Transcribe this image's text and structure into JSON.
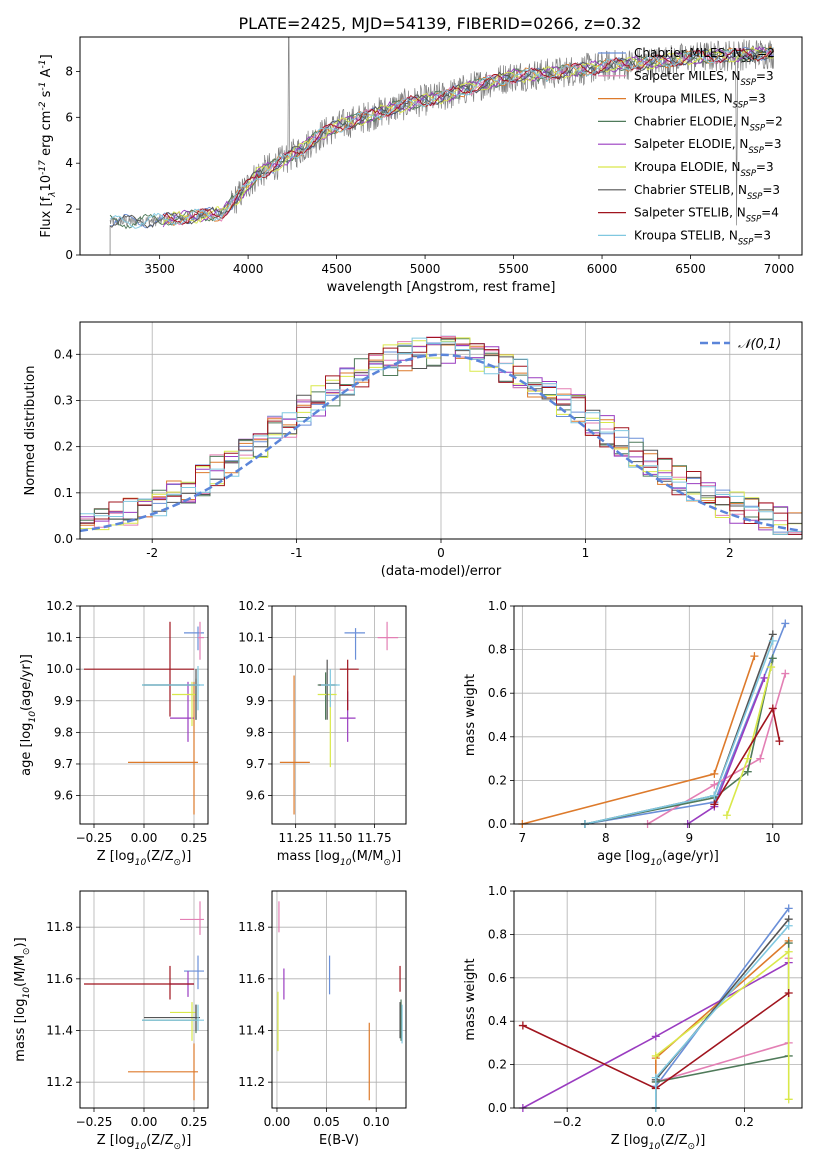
{
  "figure": {
    "title": "PLATE=2425, MJD=54139, FIBERID=0266, z=0.32"
  },
  "models": [
    {
      "name": "Chabrier MILES",
      "nssp": "2",
      "color": "#6a8fd8"
    },
    {
      "name": "Salpeter MILES",
      "nssp": "3",
      "color": "#e37fb4"
    },
    {
      "name": "Kroupa MILES",
      "nssp": "3",
      "color": "#dd7a2b"
    },
    {
      "name": "Chabrier ELODIE",
      "nssp": "2",
      "color": "#4f7a5a"
    },
    {
      "name": "Salpeter ELODIE",
      "nssp": "3",
      "color": "#9a3cc0"
    },
    {
      "name": "Kroupa ELODIE",
      "nssp": "3",
      "color": "#d9e84a"
    },
    {
      "name": "Chabrier STELIB",
      "nssp": "3",
      "color": "#555555"
    },
    {
      "name": "Salpeter STELIB",
      "nssp": "4",
      "color": "#a0141e"
    },
    {
      "name": "Kroupa STELIB",
      "nssp": "3",
      "color": "#80c8e0"
    }
  ],
  "chart_data": [
    {
      "type": "line",
      "id": "spectrum",
      "xlabel": "wavelength [Angstrom, rest frame]",
      "ylabel": "Flux [f$_\\lambda$10$^{-17}$ erg cm$^{-2}$ s$^{-1}$ A$^{-1}$]",
      "xlim": [
        3050,
        7130
      ],
      "ylim": [
        0,
        9.5
      ],
      "xticks": [
        3500,
        4000,
        4500,
        5000,
        5500,
        6000,
        6500,
        7000
      ],
      "yticks": [
        0,
        2,
        4,
        6,
        8
      ],
      "legend": "right",
      "data_series": {
        "name": "",
        "color": "#808080",
        "x_range": [
          3220,
          6970
        ]
      },
      "continuum": [
        [
          3220,
          1.45
        ],
        [
          3500,
          1.5
        ],
        [
          3700,
          1.7
        ],
        [
          3850,
          1.8
        ],
        [
          3950,
          2.6
        ],
        [
          4050,
          3.5
        ],
        [
          4150,
          3.9
        ],
        [
          4300,
          4.6
        ],
        [
          4400,
          5.2
        ],
        [
          4500,
          5.6
        ],
        [
          4700,
          6.1
        ],
        [
          4900,
          6.6
        ],
        [
          5100,
          6.9
        ],
        [
          5300,
          7.4
        ],
        [
          5500,
          7.8
        ],
        [
          5700,
          7.9
        ],
        [
          5900,
          8.1
        ],
        [
          6100,
          8.3
        ],
        [
          6300,
          8.4
        ],
        [
          6500,
          8.6
        ],
        [
          6700,
          8.7
        ],
        [
          6970,
          8.8
        ]
      ]
    },
    {
      "type": "bar",
      "id": "residuals",
      "xlabel": "(data-model)/error",
      "ylabel": "Normed distribution",
      "xlim": [
        -2.5,
        2.5
      ],
      "ylim": [
        0,
        0.47
      ],
      "xticks": [
        -2,
        -1,
        0,
        1,
        2
      ],
      "yticks": [
        0.0,
        0.1,
        0.2,
        0.3,
        0.4
      ],
      "legend": "top-right",
      "reference": {
        "name": "$\\mathcal{N}(0,1)$",
        "color": "#5b85d9"
      },
      "bin_width": 0.1
    },
    {
      "type": "scatter",
      "id": "age_vs_Z",
      "xlabel": "Z [log$_{10}$(Z/Z$_\\odot$)]",
      "ylabel": "age  [log$_{10}$(age/yr)]",
      "xlim": [
        -0.32,
        0.32
      ],
      "ylim": [
        9.51,
        10.2
      ],
      "xticks": [
        -0.25,
        0.0,
        0.25
      ],
      "xticklabels": [
        "−0.25",
        "0.00",
        "0.25"
      ],
      "yticks": [
        9.6,
        9.7,
        9.8,
        9.9,
        10.0,
        10.1,
        10.2
      ],
      "points": [
        {
          "model": 0,
          "x": 0.27,
          "xlo": 0.2,
          "xhi": 0.3,
          "y": 10.115,
          "ylo": 10.06,
          "yhi": 10.135
        },
        {
          "model": 1,
          "x": 0.28,
          "xlo": 0.27,
          "xhi": 0.3,
          "y": 10.1,
          "ylo": 10.03,
          "yhi": 10.15
        },
        {
          "model": 2,
          "x": 0.25,
          "xlo": -0.08,
          "xhi": 0.27,
          "y": 9.705,
          "ylo": 9.54,
          "yhi": 9.96
        },
        {
          "model": 3,
          "x": 0.26,
          "xlo": -0.01,
          "xhi": 0.27,
          "y": 9.95,
          "ylo": 9.84,
          "yhi": 9.97
        },
        {
          "model": 4,
          "x": 0.22,
          "xlo": 0.13,
          "xhi": 0.25,
          "y": 9.845,
          "ylo": 9.77,
          "yhi": 9.96
        },
        {
          "model": 5,
          "x": 0.24,
          "xlo": 0.14,
          "xhi": 0.26,
          "y": 9.92,
          "ylo": 9.82,
          "yhi": 9.96
        },
        {
          "model": 6,
          "x": 0.26,
          "xlo": 0.0,
          "xhi": 0.28,
          "y": 9.95,
          "ylo": 9.84,
          "yhi": 10.0
        },
        {
          "model": 7,
          "x": 0.13,
          "xlo": -0.3,
          "xhi": 0.25,
          "y": 10.0,
          "ylo": 9.85,
          "yhi": 10.15
        },
        {
          "model": 8,
          "x": 0.27,
          "xlo": -0.01,
          "xhi": 0.3,
          "y": 9.95,
          "ylo": 9.87,
          "yhi": 10.01
        }
      ]
    },
    {
      "type": "scatter",
      "id": "age_vs_mass",
      "xlabel": "mass [log$_{10}$(M/M$_\\odot$)]",
      "ylabel": "",
      "xlim": [
        11.1,
        11.95
      ],
      "ylim": [
        9.51,
        10.2
      ],
      "xticks": [
        11.25,
        11.5,
        11.75
      ],
      "xticklabels": [
        "11.25",
        "11.50",
        "11.75"
      ],
      "yticks": [
        9.6,
        9.7,
        9.8,
        9.9,
        10.0,
        10.1,
        10.2
      ],
      "points": [
        {
          "model": 0,
          "x": 11.63,
          "xlo": 11.56,
          "xhi": 11.69,
          "y": 10.115,
          "ylo": 10.03,
          "yhi": 10.13
        },
        {
          "model": 1,
          "x": 11.83,
          "xlo": 11.77,
          "xhi": 11.9,
          "y": 10.1,
          "ylo": 10.06,
          "yhi": 10.15
        },
        {
          "model": 2,
          "x": 11.24,
          "xlo": 11.15,
          "xhi": 11.34,
          "y": 9.705,
          "ylo": 9.54,
          "yhi": 9.98
        },
        {
          "model": 3,
          "x": 11.44,
          "xlo": 11.39,
          "xhi": 11.51,
          "y": 9.95,
          "ylo": 9.84,
          "yhi": 9.99
        },
        {
          "model": 4,
          "x": 11.58,
          "xlo": 11.53,
          "xhi": 11.63,
          "y": 9.845,
          "ylo": 9.77,
          "yhi": 9.93
        },
        {
          "model": 5,
          "x": 11.47,
          "xlo": 11.39,
          "xhi": 11.51,
          "y": 9.92,
          "ylo": 9.69,
          "yhi": 9.95
        },
        {
          "model": 6,
          "x": 11.45,
          "xlo": 11.4,
          "xhi": 11.5,
          "y": 9.95,
          "ylo": 9.84,
          "yhi": 10.03
        },
        {
          "model": 7,
          "x": 11.58,
          "xlo": 11.53,
          "xhi": 11.65,
          "y": 10.0,
          "ylo": 9.87,
          "yhi": 10.03
        },
        {
          "model": 8,
          "x": 11.47,
          "xlo": 11.41,
          "xhi": 11.53,
          "y": 9.95,
          "ylo": 9.88,
          "yhi": 10.0
        }
      ]
    },
    {
      "type": "line",
      "id": "weight_vs_age",
      "xlabel": "age  [log$_{10}$(age/yr)]",
      "ylabel": "mass weight",
      "xlim": [
        6.9,
        10.35
      ],
      "ylim": [
        0,
        1.0
      ],
      "xticks": [
        7,
        8,
        9,
        10
      ],
      "yticks": [
        0.0,
        0.2,
        0.4,
        0.6,
        0.8,
        1.0
      ],
      "series": [
        {
          "model": 0,
          "points": [
            [
              7.75,
              0.0
            ],
            [
              9.3,
              0.1
            ],
            [
              10.15,
              0.92
            ]
          ]
        },
        {
          "model": 1,
          "points": [
            [
              8.5,
              0.0
            ],
            [
              9.3,
              0.18
            ],
            [
              9.85,
              0.3
            ],
            [
              10.15,
              0.69
            ]
          ]
        },
        {
          "model": 2,
          "points": [
            [
              7.0,
              0.0
            ],
            [
              9.3,
              0.23
            ],
            [
              9.78,
              0.77
            ]
          ]
        },
        {
          "model": 3,
          "points": [
            [
              7.75,
              0.0
            ],
            [
              9.3,
              0.12
            ],
            [
              9.7,
              0.24
            ],
            [
              10.0,
              0.76
            ]
          ]
        },
        {
          "model": 4,
          "points": [
            [
              8.98,
              0.0
            ],
            [
              9.3,
              0.08
            ],
            [
              9.9,
              0.67
            ]
          ]
        },
        {
          "model": 5,
          "points": [
            [
              9.45,
              0.04
            ],
            [
              9.7,
              0.3
            ],
            [
              9.98,
              0.72
            ]
          ]
        },
        {
          "model": 6,
          "points": [
            [
              7.75,
              0.0
            ],
            [
              9.3,
              0.13
            ],
            [
              10.0,
              0.87
            ]
          ]
        },
        {
          "model": 7,
          "points": [
            [
              9.3,
              0.09
            ],
            [
              10.0,
              0.53
            ],
            [
              10.08,
              0.38
            ]
          ]
        },
        {
          "model": 8,
          "points": [
            [
              7.75,
              0.0
            ],
            [
              9.3,
              0.13
            ],
            [
              10.0,
              0.84
            ]
          ]
        }
      ]
    },
    {
      "type": "scatter",
      "id": "mass_vs_Z",
      "xlabel": "Z [log$_{10}$(Z/Z$_\\odot$)]",
      "ylabel": "mass [log$_{10}$(M/M$_\\odot$)]",
      "xlim": [
        -0.32,
        0.32
      ],
      "ylim": [
        11.1,
        11.94
      ],
      "xticks": [
        -0.25,
        0.0,
        0.25
      ],
      "xticklabels": [
        "−0.25",
        "0.00",
        "0.25"
      ],
      "yticks": [
        11.2,
        11.4,
        11.6,
        11.8
      ],
      "points": [
        {
          "model": 0,
          "x": 0.27,
          "xlo": 0.2,
          "xhi": 0.3,
          "y": 11.63,
          "ylo": 11.56,
          "yhi": 11.69
        },
        {
          "model": 1,
          "x": 0.28,
          "xlo": 0.18,
          "xhi": 0.3,
          "y": 11.83,
          "ylo": 11.77,
          "yhi": 11.9
        },
        {
          "model": 2,
          "x": 0.25,
          "xlo": -0.08,
          "xhi": 0.27,
          "y": 11.24,
          "ylo": 11.13,
          "yhi": 11.35
        },
        {
          "model": 3,
          "x": 0.26,
          "xlo": -0.01,
          "xhi": 0.27,
          "y": 11.44,
          "ylo": 11.39,
          "yhi": 11.5
        },
        {
          "model": 4,
          "x": 0.22,
          "xlo": 0.13,
          "xhi": 0.25,
          "y": 11.58,
          "ylo": 11.53,
          "yhi": 11.63
        },
        {
          "model": 5,
          "x": 0.24,
          "xlo": 0.13,
          "xhi": 0.26,
          "y": 11.47,
          "ylo": 11.36,
          "yhi": 11.51
        },
        {
          "model": 6,
          "x": 0.26,
          "xlo": 0.0,
          "xhi": 0.28,
          "y": 11.45,
          "ylo": 11.4,
          "yhi": 11.5
        },
        {
          "model": 7,
          "x": 0.13,
          "xlo": -0.3,
          "xhi": 0.25,
          "y": 11.58,
          "ylo": 11.52,
          "yhi": 11.65
        },
        {
          "model": 8,
          "x": 0.27,
          "xlo": -0.01,
          "xhi": 0.3,
          "y": 11.44,
          "ylo": 11.4,
          "yhi": 11.5
        }
      ]
    },
    {
      "type": "scatter",
      "id": "mass_vs_ebv",
      "xlabel": "E(B-V)",
      "ylabel": "",
      "xlim": [
        -0.005,
        0.13
      ],
      "ylim": [
        11.1,
        11.94
      ],
      "xticks": [
        0.0,
        0.05,
        0.1
      ],
      "xticklabels": [
        "0.00",
        "0.05",
        "0.10"
      ],
      "yticks": [
        11.2,
        11.4,
        11.6,
        11.8
      ],
      "points": [
        {
          "model": 0,
          "x": 0.053,
          "y": 11.63,
          "ylo": 11.54,
          "yhi": 11.69
        },
        {
          "model": 1,
          "x": 0.002,
          "y": 11.84,
          "ylo": 11.78,
          "yhi": 11.9
        },
        {
          "model": 2,
          "x": 0.093,
          "y": 11.24,
          "ylo": 11.13,
          "yhi": 11.43
        },
        {
          "model": 3,
          "x": 0.125,
          "y": 11.44,
          "ylo": 11.36,
          "yhi": 11.52
        },
        {
          "model": 4,
          "x": 0.007,
          "y": 11.58,
          "ylo": 11.52,
          "yhi": 11.64
        },
        {
          "model": 5,
          "x": 0.001,
          "y": 11.45,
          "ylo": 11.32,
          "yhi": 11.55
        },
        {
          "model": 6,
          "x": 0.124,
          "y": 11.45,
          "ylo": 11.37,
          "yhi": 11.51
        },
        {
          "model": 7,
          "x": 0.124,
          "y": 11.6,
          "ylo": 11.55,
          "yhi": 11.65
        },
        {
          "model": 8,
          "x": 0.126,
          "y": 11.43,
          "ylo": 11.35,
          "yhi": 11.5
        }
      ]
    },
    {
      "type": "line",
      "id": "weight_vs_Z",
      "xlabel": "Z [log$_{10}$(Z/Z$_\\odot$)]",
      "ylabel": "mass weight",
      "xlim": [
        -0.32,
        0.33
      ],
      "ylim": [
        0,
        1.0
      ],
      "xticks": [
        -0.2,
        0.0,
        0.2
      ],
      "xticklabels": [
        "−0.2",
        "0.0",
        "0.2"
      ],
      "yticks": [
        0.0,
        0.2,
        0.4,
        0.6,
        0.8,
        1.0
      ],
      "series": [
        {
          "model": 0,
          "points": [
            [
              0.0,
              0.0
            ],
            [
              0.0,
              0.1
            ],
            [
              0.3,
              0.92
            ]
          ]
        },
        {
          "model": 1,
          "points": [
            [
              0.0,
              0.0
            ],
            [
              0.0,
              0.12
            ],
            [
              0.3,
              0.3
            ],
            [
              0.3,
              0.69
            ]
          ]
        },
        {
          "model": 2,
          "points": [
            [
              0.0,
              0.0
            ],
            [
              0.0,
              0.23
            ],
            [
              0.3,
              0.77
            ]
          ]
        },
        {
          "model": 3,
          "points": [
            [
              0.0,
              0.0
            ],
            [
              0.0,
              0.12
            ],
            [
              0.3,
              0.24
            ],
            [
              0.3,
              0.76
            ]
          ]
        },
        {
          "model": 4,
          "points": [
            [
              -0.3,
              0.0
            ],
            [
              0.0,
              0.33
            ],
            [
              0.3,
              0.67
            ]
          ]
        },
        {
          "model": 5,
          "points": [
            [
              0.3,
              0.04
            ],
            [
              0.3,
              0.72
            ],
            [
              0.0,
              0.24
            ]
          ]
        },
        {
          "model": 6,
          "points": [
            [
              0.0,
              0.0
            ],
            [
              0.0,
              0.13
            ],
            [
              0.3,
              0.87
            ]
          ]
        },
        {
          "model": 7,
          "points": [
            [
              -0.3,
              0.38
            ],
            [
              0.0,
              0.09
            ],
            [
              0.3,
              0.53
            ]
          ]
        },
        {
          "model": 8,
          "points": [
            [
              0.0,
              0.0
            ],
            [
              0.0,
              0.14
            ],
            [
              0.3,
              0.84
            ]
          ]
        }
      ]
    }
  ]
}
